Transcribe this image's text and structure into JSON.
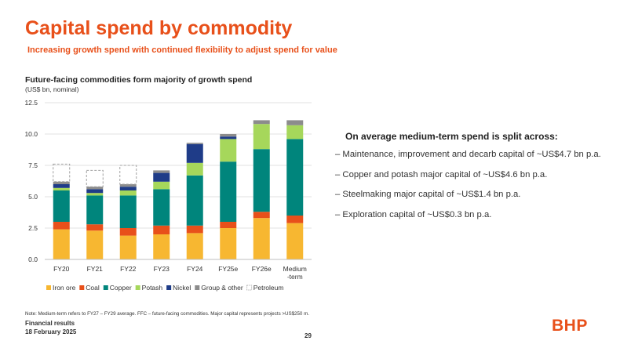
{
  "title": "Capital spend by commodity",
  "subtitle": "Increasing growth spend with continued flexibility to adjust spend for value",
  "chart_data": {
    "type": "bar",
    "stacked": true,
    "title": "Future-facing commodities form majority of growth spend",
    "unit": "(US$ bn, nominal)",
    "categories": [
      "FY20",
      "FY21",
      "FY22",
      "FY23",
      "FY24",
      "FY25e",
      "FY26e",
      "Medium -term"
    ],
    "yticks": [
      "0.0",
      "2.5",
      "5.0",
      "7.5",
      "10.0",
      "12.5"
    ],
    "ylim": [
      0,
      12.5
    ],
    "grid": true,
    "legend_position": "bottom",
    "series": [
      {
        "name": "Iron ore",
        "color": "#f7b731",
        "style": "solid",
        "values": [
          2.4,
          2.3,
          1.9,
          2.0,
          2.1,
          2.5,
          3.3,
          2.9
        ]
      },
      {
        "name": "Coal",
        "color": "#e8501a",
        "style": "solid",
        "values": [
          0.6,
          0.5,
          0.6,
          0.7,
          0.6,
          0.5,
          0.5,
          0.6
        ]
      },
      {
        "name": "Copper",
        "color": "#00857c",
        "style": "solid",
        "values": [
          2.5,
          2.3,
          2.6,
          2.9,
          4.0,
          4.8,
          5.0,
          6.1
        ]
      },
      {
        "name": "Potash",
        "color": "#a6d75b",
        "style": "solid",
        "values": [
          0.2,
          0.2,
          0.4,
          0.6,
          1.0,
          1.8,
          2.0,
          1.1
        ]
      },
      {
        "name": "Nickel",
        "color": "#1f3c88",
        "style": "solid",
        "values": [
          0.3,
          0.3,
          0.3,
          0.7,
          1.5,
          0.2,
          0.0,
          0.0
        ]
      },
      {
        "name": "Group & other",
        "color": "#8c8c8c",
        "style": "solid",
        "values": [
          0.2,
          0.2,
          0.2,
          0.2,
          0.1,
          0.2,
          0.3,
          0.4
        ]
      },
      {
        "name": "Petroleum",
        "color": "#a0a0a0",
        "style": "dashed",
        "values": [
          1.4,
          1.3,
          1.5,
          0.0,
          0.0,
          0.0,
          0.0,
          0.0
        ]
      }
    ]
  },
  "right": {
    "heading": "On average medium-term spend is split across:",
    "bullets": [
      "– Maintenance, improvement and decarb capital of ~US$4.7 bn p.a.",
      "– Copper and potash major capital of ~US$4.6 bn p.a.",
      "– Steelmaking major capital of ~US$1.4 bn p.a.",
      "– Exploration capital of ~US$0.3 bn p.a."
    ]
  },
  "note": "Note: Medium-term refers to FY27 – FY29 average. FFC – future-facing commodities. Major capital represents projects >US$250 m.",
  "footer": {
    "line1": "Financial results",
    "line2": "18 February 2025",
    "page": "29",
    "logo": "BHP"
  }
}
